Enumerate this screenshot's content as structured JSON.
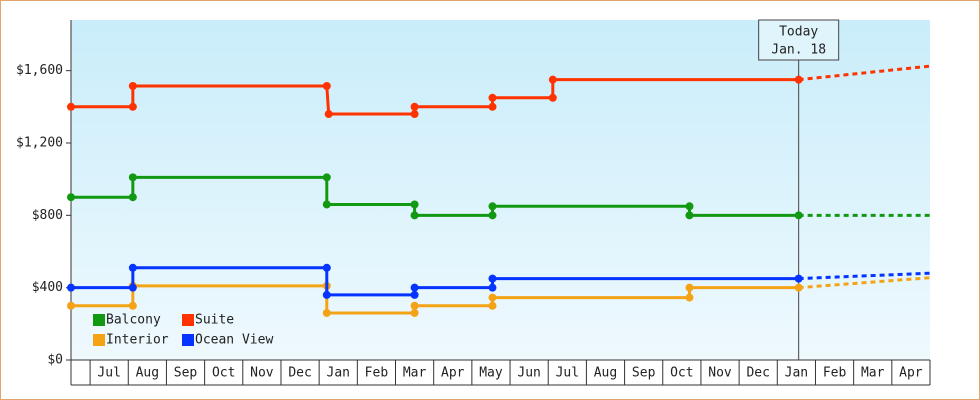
{
  "chart_data": {
    "type": "line",
    "step": true,
    "categories": [
      null,
      "Jul",
      "Aug",
      "Sep",
      "Oct",
      "Nov",
      "Dec",
      "Jan",
      "Feb",
      "Mar",
      "Apr",
      "May",
      "Jun",
      "Jul",
      "Aug",
      "Sep",
      "Oct",
      "Nov",
      "Dec",
      "Jan",
      "Feb",
      "Mar",
      "Apr"
    ],
    "xlim": [
      0.5,
      23
    ],
    "ylim": [
      0,
      1880
    ],
    "yticks": [
      {
        "value": 0,
        "label": "$0"
      },
      {
        "value": 400,
        "label": "$400"
      },
      {
        "value": 800,
        "label": "$800"
      },
      {
        "value": 1200,
        "label": "$1,200"
      },
      {
        "value": 1600,
        "label": "$1,600"
      }
    ],
    "grid": false,
    "legend": "bottom-left",
    "annotation": {
      "lines": [
        "Today",
        "Jan. 18"
      ],
      "x": 19.56
    },
    "series": [
      {
        "name": "Balcony",
        "color": "#129912",
        "x": [
          0.5,
          2.12,
          2.12,
          7.2,
          7.2,
          9.5,
          9.5,
          11.54,
          11.54,
          16.7,
          16.7,
          19.56
        ],
        "values": [
          900,
          900,
          1010,
          1010,
          860,
          860,
          800,
          800,
          850,
          850,
          800,
          800
        ],
        "forecast": {
          "x": [
            19.56,
            23
          ],
          "values": [
            800,
            800
          ]
        }
      },
      {
        "name": "Suite",
        "color": "#ff3300",
        "x": [
          0.5,
          2.12,
          2.12,
          7.2,
          7.25,
          9.5,
          9.5,
          11.54,
          11.54,
          13.12,
          13.12,
          19.56
        ],
        "values": [
          1400,
          1400,
          1515,
          1515,
          1360,
          1360,
          1400,
          1400,
          1450,
          1450,
          1550,
          1550
        ],
        "forecast": {
          "x": [
            19.56,
            23
          ],
          "values": [
            1550,
            1625
          ]
        }
      },
      {
        "name": "Interior",
        "color": "#f5a316",
        "x": [
          0.5,
          2.12,
          2.12,
          7.2,
          7.2,
          9.5,
          9.5,
          11.54,
          11.54,
          16.7,
          16.7,
          19.56
        ],
        "values": [
          300,
          300,
          410,
          410,
          260,
          260,
          300,
          300,
          345,
          345,
          400,
          400
        ],
        "forecast": {
          "x": [
            19.56,
            23
          ],
          "values": [
            400,
            455
          ]
        }
      },
      {
        "name": "Ocean View",
        "color": "#0533ff",
        "x": [
          0.5,
          2.12,
          2.12,
          7.2,
          7.2,
          9.5,
          9.5,
          11.54,
          11.54,
          19.56
        ],
        "values": [
          400,
          400,
          510,
          510,
          360,
          360,
          400,
          400,
          450,
          450
        ],
        "forecast": {
          "x": [
            19.56,
            23
          ],
          "values": [
            450,
            480
          ]
        }
      }
    ]
  }
}
